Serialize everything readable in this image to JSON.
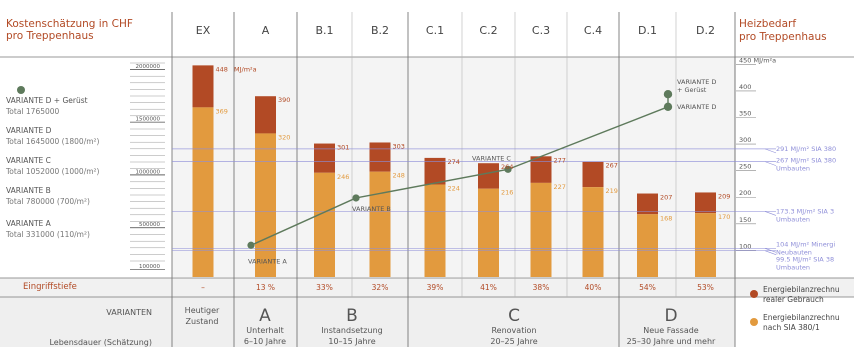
{
  "left_header": {
    "line1": "Kostenschätzung in CHF",
    "line2": "pro Treppenhaus"
  },
  "right_header": {
    "line1": "Heizbedarf",
    "line2": "pro Treppenhaus"
  },
  "columns": [
    "EX",
    "A",
    "B.1",
    "B.2",
    "C.1",
    "C.2",
    "C.3",
    "C.4",
    "D.1",
    "D.2"
  ],
  "cost_axis_ticks": [
    "2000000",
    "1500000",
    "1000000",
    "500000",
    "100000"
  ],
  "energy_axis_ticks": [
    "450 MJ/m²a",
    "400",
    "350",
    "300",
    "250",
    "200",
    "150",
    "100"
  ],
  "cost_legend": [
    {
      "name": "VARIANTE D + Gerüst",
      "total": "Total 1765000"
    },
    {
      "name": "VARIANTE D",
      "total": "Total 1645000 (1800/m²)"
    },
    {
      "name": "VARIANTE C",
      "total": "Total 1052000 (1000/m²)"
    },
    {
      "name": "VARIANTE B",
      "total": "Total 780000 (700/m²)"
    },
    {
      "name": "VARIANTE A",
      "total": "Total 331000 (110/m²)"
    }
  ],
  "reference_lines": [
    {
      "value": 291,
      "label1": "291 MJ/m² SIA 380",
      "label2": ""
    },
    {
      "value": 267,
      "label1": "267 MJ/m² SIA 380",
      "label2": "Umbauten"
    },
    {
      "value": 173.3,
      "label1": "173.3 MJ/m² SIA 3",
      "label2": "Umbauten"
    },
    {
      "value": 104,
      "label1": "104 MJ/m² Minergi",
      "label2": "Neubauten"
    },
    {
      "value": 99.5,
      "label1": "99.5 MJ/m² SIA 38",
      "label2": "Umbauten"
    }
  ],
  "line_labels": {
    "a": "VARIANTE A",
    "b": "VARIANTE B",
    "c": "VARIANTE C",
    "d": "VARIANTE D",
    "dg1": "VARIANTE D",
    "dg2": "+ Gerüst"
  },
  "eingriffstiefe": {
    "label": "Eingriffstiefe",
    "values": [
      "–",
      "13 %",
      "33%",
      "32%",
      "39%",
      "41%",
      "38%",
      "40%",
      "54%",
      "53%"
    ]
  },
  "variants_row": {
    "header": "VARIANTEN",
    "lebensdauer": "Lebensdauer (Schätzung)",
    "ex_line1": "Heutiger",
    "ex_line2": "Zustand",
    "groups": [
      {
        "letter": "A",
        "name": "Unterhalt",
        "life": "6–10 Jahre"
      },
      {
        "letter": "B",
        "name": "Instandsetzung",
        "life": "10–15 Jahre"
      },
      {
        "letter": "C",
        "name": "Renovation",
        "life": "20–25 Jahre"
      },
      {
        "letter": "D",
        "name": "Neue Fassade",
        "life": "25–30 Jahre und mehr"
      }
    ]
  },
  "energy_legend": [
    {
      "label1": "Energiebilanzrechnu",
      "label2": "realer Gebrauch",
      "color": "#b24a25"
    },
    {
      "label1": "Energiebilanzrechnu",
      "label2": "nach SIA 380/1",
      "color": "#e29a3e"
    }
  ],
  "colors": {
    "real": "#b24a25",
    "sia": "#e29a3e",
    "line": "#5e7a5c",
    "header": "#b24a25",
    "ref": "#8e8ed8"
  },
  "chart_data": {
    "type": "bar",
    "categories": [
      "EX",
      "A",
      "B.1",
      "B.2",
      "C.1",
      "C.2",
      "C.3",
      "C.4",
      "D.1",
      "D.2"
    ],
    "series": [
      {
        "name": "Energiebilanzrechnu realer Gebrauch",
        "values": [
          448,
          390,
          301,
          303,
          274,
          264,
          277,
          267,
          207,
          209
        ]
      },
      {
        "name": "Energiebilanzrechnu nach SIA 380/1",
        "values": [
          369,
          320,
          246,
          248,
          224,
          216,
          227,
          219,
          168,
          170
        ]
      }
    ],
    "unit": "MJ/m²a",
    "y_axis_label": "Heizbedarf pro Treppenhaus",
    "ylim": [
      0,
      500
    ],
    "cost_line": {
      "name": "Kostenschätzung in CHF pro Treppenhaus",
      "ylim": [
        0,
        2250000
      ],
      "points": [
        {
          "variant": "VARIANTE A",
          "x": "A",
          "value": 331000
        },
        {
          "variant": "VARIANTE B",
          "x": "B",
          "value": 780000
        },
        {
          "variant": "VARIANTE C",
          "x": "C",
          "value": 1052000
        },
        {
          "variant": "VARIANTE D",
          "x": "D",
          "value": 1645000
        },
        {
          "variant": "VARIANTE D + Gerüst",
          "x": "D",
          "value": 1765000
        }
      ]
    },
    "legend": "right"
  }
}
